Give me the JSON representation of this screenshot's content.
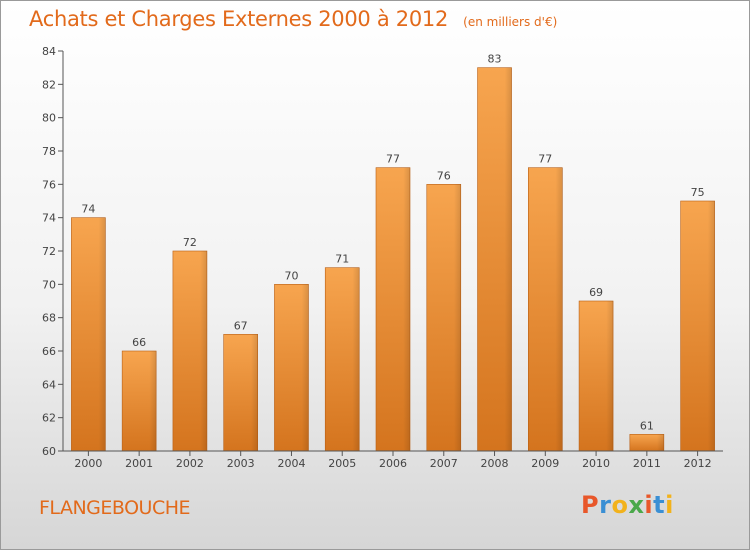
{
  "header": {
    "title": "Achats et Charges Externes 2000 à 2012",
    "subtitle": "(en milliers d'€)"
  },
  "footer": {
    "place": "FLANGEBOUCHE",
    "brand": "Proxiti",
    "brand_colors": [
      "#e8572a",
      "#3a8fd4",
      "#f2b21b",
      "#4aa84a",
      "#e8572a",
      "#3a8fd4",
      "#f2b21b"
    ]
  },
  "colors": {
    "bar_top": "#f7a54f",
    "bar_bottom": "#d4741e",
    "bar_edge": "#b85f15",
    "axis": "#555555",
    "text": "#444444",
    "title": "#e26a1b"
  },
  "chart_data": {
    "type": "bar",
    "categories": [
      "2000",
      "2001",
      "2002",
      "2003",
      "2004",
      "2005",
      "2006",
      "2007",
      "2008",
      "2009",
      "2010",
      "2011",
      "2012"
    ],
    "values": [
      74,
      66,
      72,
      67,
      70,
      71,
      77,
      76,
      83,
      77,
      69,
      61,
      75
    ],
    "data_labels": [
      "74",
      "66",
      "72",
      "67",
      "70",
      "71",
      "77",
      "76",
      "83",
      "77",
      "69",
      "61",
      "75"
    ],
    "ylim": [
      60,
      84
    ],
    "yticks": [
      60,
      62,
      64,
      66,
      68,
      70,
      72,
      74,
      76,
      78,
      80,
      82,
      84
    ],
    "grid": false,
    "legend": "none"
  }
}
